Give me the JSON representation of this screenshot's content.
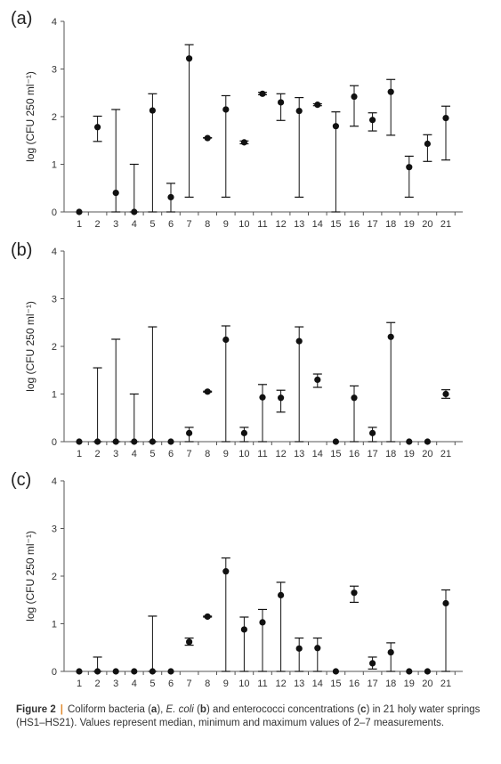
{
  "chart_data": [
    {
      "type": "scatter",
      "panel_label": "(a)",
      "ylabel": "log (CFU 250 ml⁻¹)",
      "categories": [
        "1",
        "2",
        "3",
        "4",
        "5",
        "6",
        "7",
        "8",
        "9",
        "10",
        "11",
        "12",
        "13",
        "14",
        "15",
        "16",
        "17",
        "18",
        "19",
        "20",
        "21"
      ],
      "ylim": [
        0,
        4
      ],
      "yticks": [
        0,
        1,
        2,
        3,
        4
      ],
      "median": [
        0,
        1.78,
        0.4,
        0,
        2.13,
        0.31,
        3.22,
        1.55,
        2.15,
        1.46,
        2.48,
        2.3,
        2.12,
        2.25,
        1.8,
        2.42,
        1.93,
        2.52,
        0.94,
        1.43,
        1.97
      ],
      "min": [
        0,
        1.48,
        0,
        0,
        0,
        0,
        0.31,
        1.55,
        0.31,
        1.43,
        2.46,
        1.92,
        0.31,
        2.23,
        0,
        1.8,
        1.7,
        1.61,
        0.31,
        1.06,
        1.09
      ],
      "max": [
        0,
        2.01,
        2.15,
        1.0,
        2.48,
        0.6,
        3.51,
        1.56,
        2.44,
        1.49,
        2.51,
        2.48,
        2.4,
        2.27,
        2.1,
        2.65,
        2.08,
        2.78,
        1.17,
        1.62,
        2.22
      ],
      "grid": false
    },
    {
      "type": "scatter",
      "panel_label": "(b)",
      "ylabel": "log (CFU 250 ml⁻¹)",
      "categories": [
        "1",
        "2",
        "3",
        "4",
        "5",
        "6",
        "7",
        "8",
        "9",
        "10",
        "11",
        "12",
        "13",
        "14",
        "15",
        "16",
        "17",
        "18",
        "19",
        "20",
        "21"
      ],
      "ylim": [
        0,
        4
      ],
      "yticks": [
        0,
        1,
        2,
        3,
        4
      ],
      "median": [
        0,
        0,
        0,
        0,
        0,
        0,
        0.18,
        1.05,
        2.14,
        0.18,
        0.93,
        0.92,
        2.11,
        1.3,
        0,
        0.92,
        0.18,
        2.2,
        0,
        0,
        1.0
      ],
      "min": [
        0,
        0,
        0,
        0,
        0,
        0,
        0,
        1.04,
        0,
        0,
        0,
        0.62,
        0,
        1.14,
        0,
        0,
        0,
        0,
        0,
        0,
        0.91
      ],
      "max": [
        0,
        1.55,
        2.15,
        1.0,
        2.41,
        0,
        0.3,
        1.06,
        2.43,
        0.3,
        1.2,
        1.08,
        2.41,
        1.42,
        0,
        1.17,
        0.3,
        2.5,
        0,
        0,
        1.09
      ],
      "grid": false
    },
    {
      "type": "scatter",
      "panel_label": "(c)",
      "ylabel": "log (CFU 250 ml⁻¹)",
      "categories": [
        "1",
        "2",
        "3",
        "4",
        "5",
        "6",
        "7",
        "8",
        "9",
        "10",
        "11",
        "12",
        "13",
        "14",
        "15",
        "16",
        "17",
        "18",
        "19",
        "20",
        "21"
      ],
      "ylim": [
        0,
        4
      ],
      "yticks": [
        0,
        1,
        2,
        3,
        4
      ],
      "median": [
        0,
        0,
        0,
        0,
        0,
        0,
        0.62,
        1.15,
        2.1,
        0.88,
        1.03,
        1.6,
        0.48,
        0.49,
        0,
        1.65,
        0.17,
        0.4,
        0,
        0,
        1.43
      ],
      "min": [
        0,
        0,
        0,
        0,
        0,
        0,
        0.55,
        1.14,
        0,
        0,
        0,
        0,
        0,
        0,
        0,
        1.45,
        0.05,
        0,
        0,
        0,
        0
      ],
      "max": [
        0,
        0.3,
        0,
        0,
        1.16,
        0,
        0.7,
        1.16,
        2.38,
        1.14,
        1.3,
        1.87,
        0.7,
        0.7,
        0,
        1.79,
        0.3,
        0.6,
        0,
        0,
        1.71
      ],
      "grid": false
    }
  ],
  "caption": {
    "figure_label": "Figure 2",
    "separator": "|",
    "text_1": "Coliform bacteria (",
    "a": "a",
    "text_2": "), ",
    "ecoli": "E. coli",
    "text_3": " (",
    "b": "b",
    "text_4": ") and enterococci concentrations (",
    "c": "c",
    "text_5": ") in 21 holy water springs (HS1–HS21). Values represent median, minimum and maximum values of 2–7 measurements."
  },
  "colors": {
    "axis": "#555555",
    "marker": "#111111",
    "caption_separator": "#e08a2e"
  }
}
